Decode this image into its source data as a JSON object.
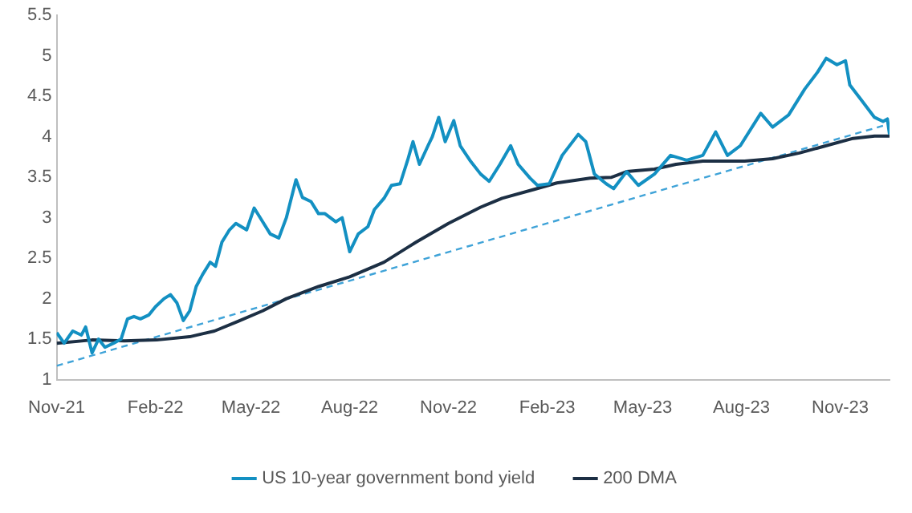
{
  "chart_data": {
    "type": "line",
    "xlim": [
      "2021-11-01",
      "2023-12-17"
    ],
    "xticks": [
      {
        "value": "2021-11-01",
        "label": "Nov-21"
      },
      {
        "value": "2022-02-01",
        "label": "Feb-22"
      },
      {
        "value": "2022-05-01",
        "label": "May-22"
      },
      {
        "value": "2022-08-01",
        "label": "Aug-22"
      },
      {
        "value": "2022-11-01",
        "label": "Nov-22"
      },
      {
        "value": "2023-02-01",
        "label": "Feb-23"
      },
      {
        "value": "2023-05-01",
        "label": "May-23"
      },
      {
        "value": "2023-08-01",
        "label": "Aug-23"
      },
      {
        "value": "2023-11-01",
        "label": "Nov-23"
      }
    ],
    "ylim": [
      1,
      5.5
    ],
    "yticks": [
      1,
      1.5,
      2,
      2.5,
      3,
      3.5,
      4,
      4.5,
      5,
      5.5
    ],
    "grid": false,
    "legend": "bottom",
    "marker": "none",
    "series": [
      {
        "name": "US 10-year government bond yield",
        "color": "#1390c2",
        "line_style": "solid",
        "x": [
          "2021-11-01",
          "2021-11-08",
          "2021-11-16",
          "2021-11-24",
          "2021-11-28",
          "2021-12-04",
          "2021-12-10",
          "2021-12-16",
          "2021-12-24",
          "2021-12-31",
          "2022-01-06",
          "2022-01-12",
          "2022-01-18",
          "2022-01-26",
          "2022-02-01",
          "2022-02-09",
          "2022-02-15",
          "2022-02-21",
          "2022-02-27",
          "2022-03-05",
          "2022-03-11",
          "2022-03-17",
          "2022-03-24",
          "2022-03-29",
          "2022-04-04",
          "2022-04-11",
          "2022-04-17",
          "2022-04-27",
          "2022-05-04",
          "2022-05-12",
          "2022-05-19",
          "2022-05-27",
          "2022-06-03",
          "2022-06-12",
          "2022-06-18",
          "2022-06-26",
          "2022-07-03",
          "2022-07-09",
          "2022-07-19",
          "2022-07-25",
          "2022-08-01",
          "2022-08-09",
          "2022-08-18",
          "2022-08-24",
          "2022-09-02",
          "2022-09-09",
          "2022-09-17",
          "2022-09-24",
          "2022-09-29",
          "2022-10-05",
          "2022-10-13",
          "2022-10-17",
          "2022-10-23",
          "2022-10-29",
          "2022-11-06",
          "2022-11-12",
          "2022-11-21",
          "2022-12-01",
          "2022-12-09",
          "2022-12-19",
          "2022-12-29",
          "2023-01-05",
          "2023-01-16",
          "2023-01-23",
          "2023-02-03",
          "2023-02-15",
          "2023-03-02",
          "2023-03-09",
          "2023-03-17",
          "2023-03-28",
          "2023-04-04",
          "2023-04-16",
          "2023-04-27",
          "2023-05-12",
          "2023-05-27",
          "2023-06-11",
          "2023-06-26",
          "2023-07-08",
          "2023-07-19",
          "2023-07-31",
          "2023-08-19",
          "2023-08-30",
          "2023-09-14",
          "2023-09-29",
          "2023-10-11",
          "2023-10-19",
          "2023-10-29",
          "2023-11-06",
          "2023-11-10",
          "2023-11-21",
          "2023-12-03",
          "2023-12-11",
          "2023-12-15",
          "2023-12-17"
        ],
        "values": [
          1.58,
          1.45,
          1.6,
          1.55,
          1.65,
          1.33,
          1.5,
          1.4,
          1.45,
          1.5,
          1.75,
          1.78,
          1.75,
          1.8,
          1.9,
          2.0,
          2.05,
          1.95,
          1.73,
          1.85,
          2.15,
          2.3,
          2.45,
          2.4,
          2.7,
          2.85,
          2.93,
          2.85,
          3.12,
          2.95,
          2.8,
          2.75,
          3.0,
          3.47,
          3.25,
          3.2,
          3.05,
          3.05,
          2.95,
          3.0,
          2.58,
          2.8,
          2.89,
          3.1,
          3.24,
          3.4,
          3.42,
          3.71,
          3.94,
          3.66,
          3.89,
          4.0,
          4.24,
          3.94,
          4.2,
          3.89,
          3.71,
          3.54,
          3.45,
          3.66,
          3.89,
          3.66,
          3.49,
          3.4,
          3.42,
          3.77,
          4.03,
          3.94,
          3.54,
          3.42,
          3.36,
          3.57,
          3.4,
          3.54,
          3.77,
          3.71,
          3.77,
          4.06,
          3.77,
          3.89,
          4.29,
          4.12,
          4.27,
          4.59,
          4.8,
          4.97,
          4.89,
          4.94,
          4.64,
          4.45,
          4.24,
          4.19,
          4.22,
          4.03
        ]
      },
      {
        "name": "200 DMA",
        "color": "#1c2f44",
        "line_style": "solid",
        "x": [
          "2021-11-01",
          "2021-12-04",
          "2022-01-03",
          "2022-02-02",
          "2022-03-05",
          "2022-03-28",
          "2022-04-19",
          "2022-05-12",
          "2022-06-03",
          "2022-07-03",
          "2022-08-01",
          "2022-09-02",
          "2022-10-02",
          "2022-11-01",
          "2022-12-01",
          "2022-12-21",
          "2023-01-20",
          "2023-02-10",
          "2023-03-13",
          "2023-04-02",
          "2023-04-16",
          "2023-05-12",
          "2023-06-01",
          "2023-06-26",
          "2023-08-04",
          "2023-08-30",
          "2023-09-24",
          "2023-10-19",
          "2023-11-13",
          "2023-12-03",
          "2023-12-17"
        ],
        "values": [
          1.45,
          1.49,
          1.48,
          1.49,
          1.53,
          1.6,
          1.72,
          1.85,
          2.0,
          2.15,
          2.27,
          2.45,
          2.7,
          2.93,
          3.13,
          3.24,
          3.35,
          3.43,
          3.49,
          3.5,
          3.57,
          3.6,
          3.66,
          3.7,
          3.7,
          3.73,
          3.8,
          3.89,
          3.98,
          4.01,
          4.01
        ]
      },
      {
        "color": "#3fa3d8",
        "line_style": "dashed",
        "x": [
          "2021-11-01",
          "2023-12-17"
        ],
        "values": [
          1.17,
          4.16
        ]
      }
    ]
  }
}
